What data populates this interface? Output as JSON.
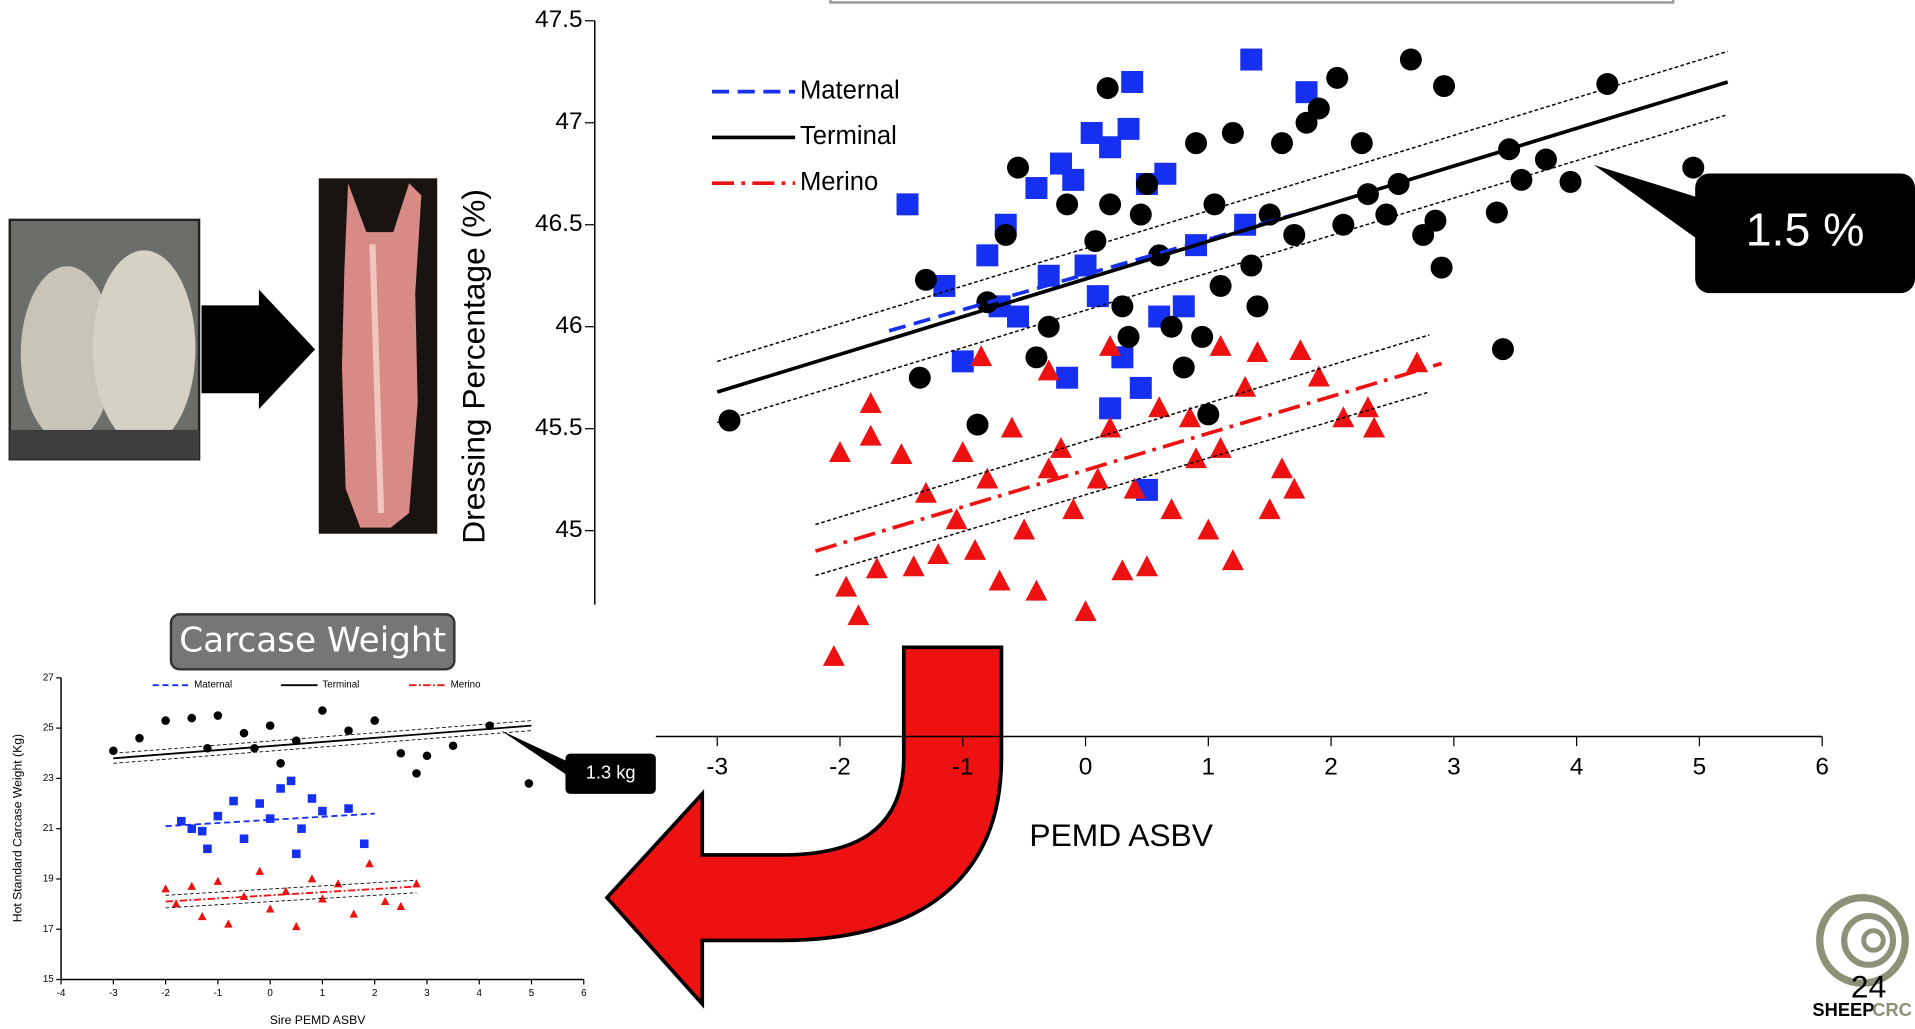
{
  "chart_data": [
    {
      "type": "scatter",
      "x_label": "PEMD ASBV",
      "y_label": "Dressing Percentage (%)",
      "callout": "1.5 %",
      "xlim": [
        -3.5,
        6
      ],
      "ylim": [
        44,
        47.5
      ],
      "xticks": [
        -3,
        -2,
        -1,
        0,
        1,
        2,
        3,
        4,
        5,
        6
      ],
      "yticks": [
        45,
        45.5,
        46,
        46.5,
        47,
        47.5
      ],
      "series": [
        {
          "name": "Maternal",
          "color": "#1530f0",
          "marker": "square",
          "line": "dashed",
          "x": [
            -1.45,
            -1.15,
            -1.0,
            -0.8,
            -0.65,
            -0.4,
            -0.2,
            -0.1,
            0.05,
            0.2,
            0.38,
            0.35,
            0.5,
            0.65,
            0.2,
            0.45,
            0.5,
            -0.15,
            1.35,
            1.8,
            0.0,
            0.1,
            -0.3,
            0.3,
            0.6,
            -0.55,
            0.9,
            0.8,
            -0.7,
            1.3
          ],
          "values": [
            46.6,
            46.2,
            45.83,
            46.35,
            46.5,
            46.68,
            46.8,
            46.72,
            46.95,
            46.88,
            47.2,
            46.97,
            46.7,
            46.75,
            45.6,
            45.7,
            45.2,
            45.75,
            47.31,
            47.15,
            46.3,
            46.15,
            46.25,
            45.85,
            46.05,
            46.05,
            46.4,
            46.1,
            46.1,
            46.5
          ],
          "fit_x": [
            -1.6,
            1.7
          ],
          "fit_y": [
            45.98,
            46.55
          ]
        },
        {
          "name": "Terminal",
          "color": "#000000",
          "marker": "circle",
          "line": "solid",
          "x": [
            -2.9,
            -1.35,
            -0.88,
            -1.3,
            -0.8,
            -0.55,
            -0.3,
            -0.4,
            0.08,
            0.2,
            0.18,
            0.45,
            0.6,
            0.7,
            0.8,
            0.9,
            1.05,
            1.2,
            1.35,
            1.4,
            1.5,
            1.6,
            1.8,
            1.9,
            2.05,
            2.1,
            2.25,
            2.3,
            2.45,
            2.55,
            2.65,
            2.75,
            2.85,
            2.92,
            3.35,
            3.4,
            3.45,
            3.55,
            3.75,
            3.95,
            4.25,
            4.95,
            0.3,
            0.95,
            -0.15,
            1.1,
            0.5,
            1.7,
            1.0,
            2.9,
            0.35,
            -0.65
          ],
          "values": [
            45.54,
            45.75,
            45.52,
            46.23,
            46.12,
            46.78,
            46.0,
            45.85,
            46.42,
            46.6,
            47.17,
            46.55,
            46.35,
            46.0,
            45.8,
            46.9,
            46.6,
            46.95,
            46.3,
            46.1,
            46.55,
            46.9,
            47.0,
            47.07,
            47.22,
            46.5,
            46.9,
            46.65,
            46.55,
            46.7,
            47.31,
            46.45,
            46.52,
            47.18,
            46.56,
            45.89,
            46.87,
            46.72,
            46.82,
            46.71,
            47.19,
            46.78,
            46.1,
            45.95,
            46.6,
            46.2,
            46.7,
            46.45,
            45.57,
            46.29,
            45.95,
            46.45
          ],
          "fit_x": [
            -3,
            5.23
          ],
          "fit_y": [
            45.68,
            47.2
          ],
          "band_x": [
            -3,
            5.23
          ],
          "band_upper": [
            45.83,
            47.35
          ],
          "band_lower": [
            45.53,
            47.04
          ]
        },
        {
          "name": "Merino",
          "color": "#ee1111",
          "marker": "triangle",
          "line": "dashdot",
          "x": [
            -2.0,
            -2.05,
            -1.95,
            -1.75,
            -1.75,
            -1.85,
            -1.7,
            -1.5,
            -1.4,
            -1.3,
            -1.2,
            -1.0,
            -0.8,
            -0.9,
            -0.6,
            -0.5,
            -0.4,
            -0.3,
            -0.2,
            -0.1,
            0.0,
            0.1,
            0.2,
            0.3,
            0.4,
            0.5,
            0.6,
            0.7,
            0.9,
            1.0,
            1.1,
            1.2,
            1.3,
            1.5,
            1.7,
            1.9,
            2.1,
            2.3,
            2.35,
            2.7,
            -0.85,
            -0.3,
            0.2,
            1.1,
            1.4,
            1.75,
            -1.05,
            -0.7,
            0.85,
            1.6
          ],
          "values": [
            45.38,
            44.38,
            44.72,
            45.62,
            45.46,
            44.58,
            44.81,
            45.37,
            44.82,
            45.18,
            44.88,
            45.38,
            45.25,
            44.9,
            45.5,
            45.0,
            44.7,
            45.3,
            45.4,
            45.1,
            44.6,
            45.25,
            45.5,
            44.8,
            45.2,
            44.82,
            45.6,
            45.1,
            45.35,
            45.0,
            45.4,
            44.85,
            45.7,
            45.1,
            45.2,
            45.75,
            45.55,
            45.6,
            45.5,
            45.82,
            45.85,
            45.78,
            45.9,
            45.9,
            45.87,
            45.88,
            45.05,
            44.75,
            45.55,
            45.3
          ],
          "fit_x": [
            -2.2,
            2.9
          ],
          "fit_y": [
            44.9,
            45.82
          ],
          "band_x": [
            -2.2,
            2.8
          ],
          "band_upper": [
            45.03,
            45.96
          ],
          "band_lower": [
            44.78,
            45.68
          ]
        }
      ]
    },
    {
      "type": "scatter",
      "title": "Carcase Weight",
      "x_label": "Sire PEMD ASBV",
      "y_label": "Hot Standard Carcase Weight (Kg)",
      "callout": "1.3 kg",
      "xlim": [
        -4,
        6
      ],
      "ylim": [
        15,
        27
      ],
      "xticks": [
        -4,
        -3,
        -2,
        -1,
        0,
        1,
        2,
        3,
        4,
        5,
        6
      ],
      "yticks": [
        15,
        17,
        19,
        21,
        23,
        25,
        27
      ],
      "series": [
        {
          "name": "Maternal",
          "color": "#1530f0",
          "marker": "square",
          "line": "dashed",
          "x": [
            -1.7,
            -1.5,
            -1.3,
            -1.2,
            -1.0,
            -0.7,
            -0.5,
            -0.2,
            0.0,
            0.2,
            0.4,
            0.5,
            0.6,
            0.8,
            1.0,
            1.8,
            1.5
          ],
          "values": [
            21.3,
            21.0,
            20.9,
            20.2,
            21.5,
            22.1,
            20.6,
            22.0,
            21.4,
            22.6,
            22.9,
            20.0,
            21.0,
            22.2,
            21.7,
            20.4,
            21.8
          ],
          "fit_x": [
            -2,
            2
          ],
          "fit_y": [
            21.1,
            21.6
          ]
        },
        {
          "name": "Terminal",
          "color": "#000000",
          "marker": "circle",
          "line": "solid",
          "x": [
            -3,
            -2.5,
            -2,
            -1.5,
            -1.2,
            -1,
            -0.5,
            0,
            0.5,
            1,
            1.5,
            2,
            2.5,
            3,
            3.5,
            4.2,
            4.95,
            0.2,
            -0.3,
            2.8
          ],
          "values": [
            24.1,
            24.6,
            25.3,
            25.4,
            24.2,
            25.5,
            24.8,
            25.1,
            24.5,
            25.7,
            24.9,
            25.3,
            24.0,
            23.9,
            24.3,
            25.1,
            22.8,
            23.6,
            24.2,
            23.2
          ],
          "fit_x": [
            -3,
            5
          ],
          "fit_y": [
            23.8,
            25.1
          ],
          "band_x": [
            -3,
            5
          ],
          "band_upper": [
            24.0,
            25.3
          ],
          "band_lower": [
            23.6,
            24.9
          ]
        },
        {
          "name": "Merino",
          "color": "#ee1111",
          "marker": "triangle",
          "line": "dashdot",
          "x": [
            -2,
            -1.8,
            -1.5,
            -1.3,
            -1,
            -0.8,
            -0.5,
            -0.2,
            0,
            0.3,
            0.5,
            0.8,
            1.0,
            1.3,
            1.6,
            1.9,
            2.2,
            2.5,
            2.8
          ],
          "values": [
            18.6,
            18.0,
            18.7,
            17.5,
            18.9,
            17.2,
            18.3,
            19.3,
            17.8,
            18.5,
            17.1,
            19.0,
            18.2,
            18.8,
            17.6,
            19.6,
            18.1,
            17.9,
            18.8
          ],
          "fit_x": [
            -2,
            2.8
          ],
          "fit_y": [
            18.1,
            18.7
          ],
          "band_x": [
            -2,
            2.8
          ],
          "band_upper": [
            18.35,
            18.95
          ],
          "band_lower": [
            17.85,
            18.45
          ]
        }
      ]
    }
  ],
  "slide": {
    "page_number": "24",
    "logo": [
      "SHEEP",
      "CRC"
    ]
  }
}
